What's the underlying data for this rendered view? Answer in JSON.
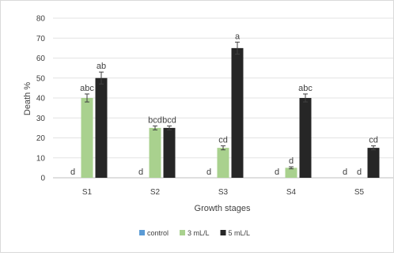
{
  "chart_data": {
    "type": "bar",
    "xlabel": "Growth stages",
    "ylabel": "Death %",
    "ylim": [
      0,
      80
    ],
    "yticks": [
      0,
      10,
      20,
      30,
      40,
      50,
      60,
      70,
      80
    ],
    "grid": true,
    "legend_position": "bottom",
    "categories": [
      "S1",
      "S2",
      "S3",
      "S4",
      "S5"
    ],
    "series": [
      {
        "name": "control",
        "color": "#5b9bd5",
        "values": [
          0,
          0,
          0,
          0,
          0
        ],
        "errors": [
          0,
          0,
          0,
          0,
          0
        ],
        "labels": [
          "d",
          "d",
          "d",
          "d",
          "d"
        ]
      },
      {
        "name": "3 mL/L",
        "color": "#a9d18e",
        "values": [
          40,
          25,
          15,
          5,
          0
        ],
        "errors": [
          2,
          1,
          1,
          0.5,
          0
        ],
        "labels": [
          "abc",
          "bcd",
          "cd",
          "d",
          "d"
        ]
      },
      {
        "name": "5 mL/L",
        "color": "#262626",
        "values": [
          50,
          25,
          65,
          40,
          15
        ],
        "errors": [
          3,
          1,
          3,
          2,
          1
        ],
        "labels": [
          "ab",
          "bcd",
          "a",
          "abc",
          "cd"
        ]
      }
    ]
  }
}
